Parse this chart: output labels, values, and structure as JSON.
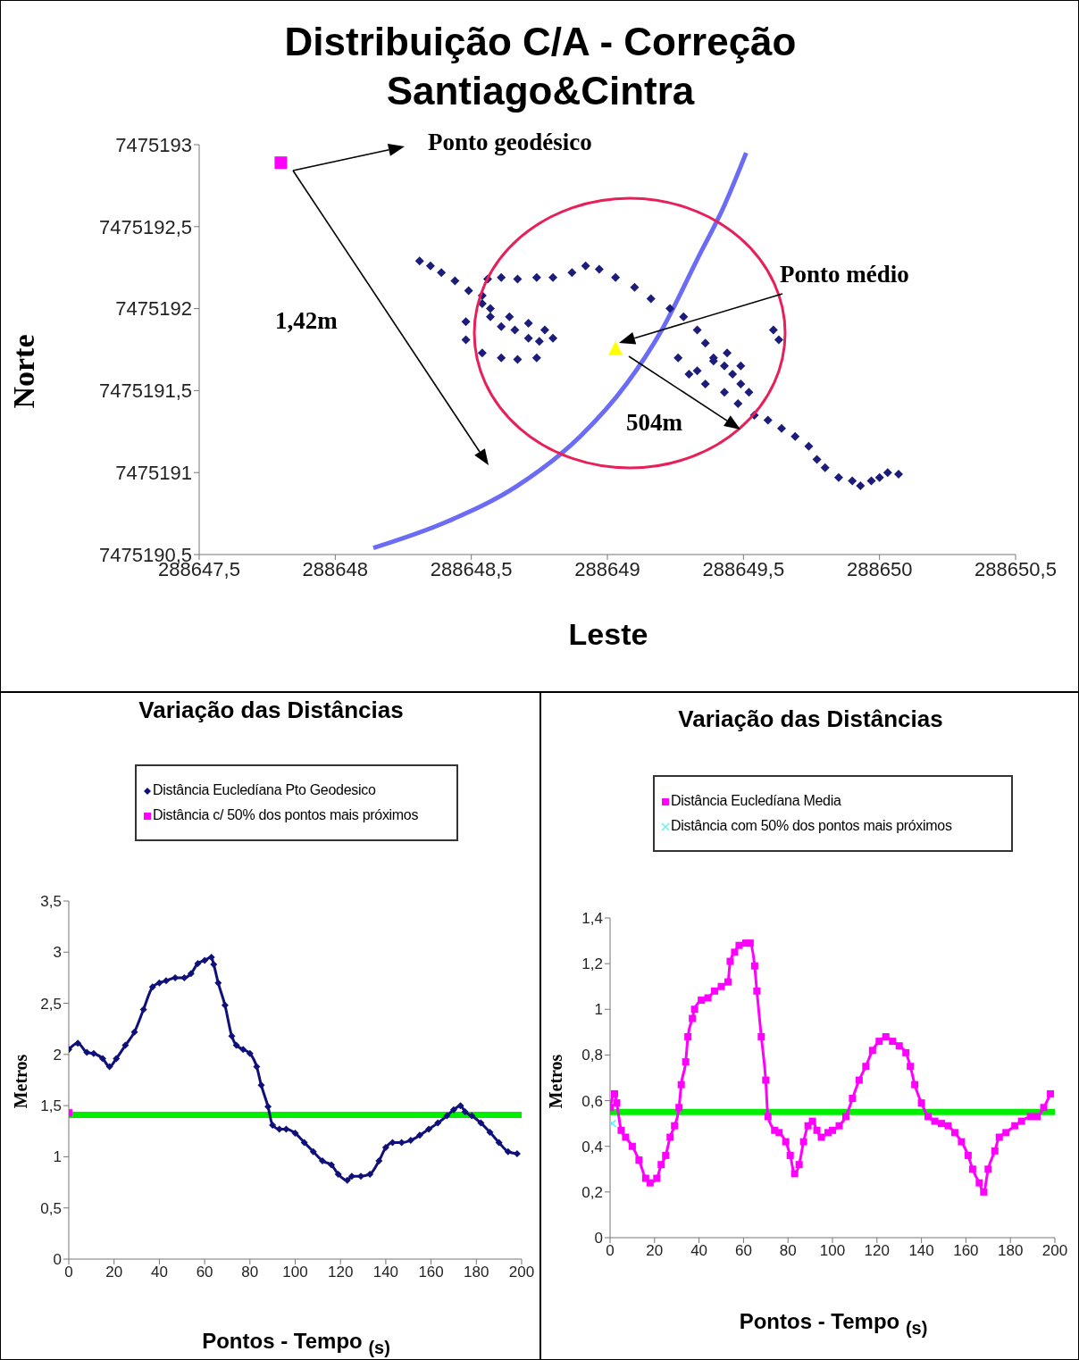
{
  "chart_data": [
    {
      "type": "scatter",
      "title": "Distribuição  C/A - Correção Santiago&Cintra",
      "xlabel": "Leste",
      "ylabel": "Norte",
      "xlim": [
        288647.5,
        288650.5
      ],
      "xticks": [
        {
          "value": 288647.5,
          "label": "288647,5"
        },
        288648,
        {
          "value": 288648.5,
          "label": "288648,5"
        },
        288649,
        {
          "value": 288649.5,
          "label": "288649,5"
        },
        288650,
        {
          "value": 288650.5,
          "label": "288650,5"
        }
      ],
      "ylim": [
        7475190.5,
        7475193
      ],
      "yticks": [
        {
          "value": 7475190.5,
          "label": "7475190,5"
        },
        7475191,
        {
          "value": 7475191.5,
          "label": "7475191,5"
        },
        7475192,
        {
          "value": 7475192.5,
          "label": "7475192,5"
        },
        7475193
      ],
      "annotations": [
        "Ponto geodésico",
        "Ponto médio",
        "1,42m",
        "504m"
      ],
      "series": [
        {
          "type": "line",
          "color": "#6b6bf5",
          "marker": "none",
          "x": [
            288648.14,
            288648.41,
            288648.67,
            288648.9,
            288649.07,
            288649.2,
            288649.33,
            288649.43,
            288649.51
          ],
          "values": [
            7475190.54,
            7475190.7,
            7475190.92,
            7475191.22,
            7475191.54,
            7475191.87,
            7475192.3,
            7475192.63,
            7475192.95
          ]
        },
        {
          "color": "#1c1c7a",
          "marker": "diamond",
          "x": [
            288648.31,
            288648.35,
            288648.39,
            288648.44,
            288648.49,
            288648.54,
            288648.57,
            288648.61,
            288648.66,
            288648.71,
            288648.75,
            288648.8,
            288648.77,
            288648.71,
            288648.64,
            288648.57,
            288648.54,
            288648.56,
            288648.61,
            288648.67,
            288648.74,
            288648.8,
            288648.87,
            288648.92,
            288648.97,
            288649.03,
            288649.1,
            288649.16,
            288649.23,
            288649.28,
            288649.33,
            288649.36,
            288649.39,
            288649.43,
            288649.46,
            288649.49,
            288649.52,
            288649.49,
            288649.44,
            288649.39,
            288649.33,
            288649.26,
            288649.3,
            288649.36,
            288649.43,
            288649.48,
            288649.54,
            288649.59,
            288649.64,
            288649.69,
            288649.74,
            288649.77,
            288649.8,
            288649.85,
            288649.9,
            288649.93,
            288649.97,
            288650.0,
            288650.03,
            288650.07,
            288649.61,
            288649.63,
            288648.48,
            288648.54,
            288648.61,
            288648.67,
            288648.74,
            288648.48
          ],
          "values": [
            7475192.29,
            7475192.26,
            7475192.22,
            7475192.17,
            7475192.11,
            7475192.03,
            7475191.95,
            7475191.89,
            7475191.87,
            7475191.82,
            7475191.8,
            7475191.82,
            7475191.87,
            7475191.91,
            7475191.95,
            7475192.0,
            7475192.08,
            7475192.18,
            7475192.19,
            7475192.18,
            7475192.19,
            7475192.19,
            7475192.22,
            7475192.26,
            7475192.24,
            7475192.19,
            7475192.13,
            7475192.06,
            7475192.0,
            7475191.95,
            7475191.87,
            7475191.79,
            7475191.7,
            7475191.65,
            7475191.6,
            7475191.54,
            7475191.49,
            7475191.65,
            7475191.73,
            7475191.68,
            7475191.62,
            7475191.7,
            7475191.6,
            7475191.54,
            7475191.49,
            7475191.42,
            7475191.35,
            7475191.32,
            7475191.27,
            7475191.22,
            7475191.16,
            7475191.08,
            7475191.03,
            7475190.97,
            7475190.95,
            7475190.92,
            7475190.95,
            7475190.97,
            7475191.0,
            7475190.99,
            7475191.87,
            7475191.81,
            7475191.81,
            7475191.73,
            7475191.7,
            7475191.69,
            7475191.7,
            7475191.92
          ]
        },
        {
          "color": "#ff00ff",
          "marker": "square",
          "x": [
            288647.8
          ],
          "values": [
            7475192.89
          ]
        },
        {
          "color": "#ffff00",
          "marker": "triangle",
          "x": [
            288649.03
          ],
          "values": [
            7475191.76
          ]
        }
      ]
    },
    {
      "type": "line",
      "title": "Variação das Distâncias",
      "xlabel": "Pontos - Tempo $_{(s)}$",
      "ylabel": "Metros",
      "legend": "top",
      "xlim": [
        0,
        200
      ],
      "xticks": [
        0,
        20,
        40,
        60,
        80,
        100,
        120,
        140,
        160,
        180,
        200
      ],
      "ylim": [
        0,
        3.5
      ],
      "yticks": [
        0,
        {
          "value": 0.5,
          "label": "0,5"
        },
        1,
        {
          "value": 1.5,
          "label": "1,5"
        },
        2,
        {
          "value": 2.5,
          "label": "2,5"
        },
        3,
        {
          "value": 3.5,
          "label": "3,5"
        }
      ],
      "ref_lines": [
        {
          "axis": "y",
          "value": 1.41,
          "color": "#00ee00"
        }
      ],
      "series": [
        {
          "name": "Distância Eucledíana Pto Geodesico",
          "color": "#10107a",
          "marker": "diamond",
          "x": [
            0,
            4,
            8,
            11,
            15,
            18,
            21,
            25,
            29,
            33,
            37,
            40,
            43,
            47,
            51,
            54,
            57,
            60,
            63,
            64,
            66,
            69,
            72,
            74,
            77,
            80,
            83,
            85,
            88,
            90,
            93,
            96,
            100,
            104,
            108,
            112,
            116,
            119,
            123,
            125,
            129,
            133,
            137,
            140,
            143,
            147,
            151,
            155,
            159,
            163,
            167,
            170,
            173,
            175,
            178,
            182,
            186,
            190,
            194,
            198
          ],
          "values": [
            2.05,
            2.11,
            2.02,
            2.01,
            1.96,
            1.88,
            1.96,
            2.09,
            2.22,
            2.44,
            2.66,
            2.7,
            2.72,
            2.75,
            2.75,
            2.79,
            2.89,
            2.92,
            2.95,
            2.88,
            2.7,
            2.48,
            2.18,
            2.09,
            2.05,
            2.01,
            1.88,
            1.7,
            1.49,
            1.31,
            1.27,
            1.27,
            1.23,
            1.14,
            1.05,
            0.96,
            0.92,
            0.83,
            0.77,
            0.81,
            0.81,
            0.83,
            0.96,
            1.09,
            1.14,
            1.14,
            1.16,
            1.21,
            1.27,
            1.33,
            1.4,
            1.46,
            1.5,
            1.44,
            1.4,
            1.33,
            1.24,
            1.14,
            1.05,
            1.03
          ]
        },
        {
          "name": "Distância c/ 50% dos pontos mais próximos",
          "type": "scatter",
          "color": "#ff00ff",
          "marker": "square",
          "x": [
            0
          ],
          "values": [
            1.43
          ]
        }
      ]
    },
    {
      "type": "line",
      "title": "Variação das Distâncias",
      "xlabel": "Pontos - Tempo $_{(s)}$",
      "ylabel": "Metros",
      "legend": "top",
      "xlim": [
        0,
        200
      ],
      "xticks": [
        0,
        20,
        40,
        60,
        80,
        100,
        120,
        140,
        160,
        180,
        200
      ],
      "ylim": [
        0,
        1.4
      ],
      "yticks": [
        0,
        {
          "value": 0.2,
          "label": "0,2"
        },
        {
          "value": 0.4,
          "label": "0,4"
        },
        {
          "value": 0.6,
          "label": "0,6"
        },
        {
          "value": 0.8,
          "label": "0,8"
        },
        1,
        {
          "value": 1.2,
          "label": "1,2"
        },
        {
          "value": 1.4,
          "label": "1,4"
        }
      ],
      "ref_lines": [
        {
          "axis": "y",
          "value": 0.55,
          "color": "#00ee00"
        }
      ],
      "series": [
        {
          "name": "Distância Eucledíana Media",
          "color": "#ff00ff",
          "marker": "square",
          "x": [
            0,
            2,
            3,
            5,
            7,
            10,
            13,
            16,
            18,
            21,
            23,
            25,
            27,
            29,
            31,
            32,
            34,
            35,
            37,
            38,
            41,
            44,
            47,
            50,
            53,
            54,
            56,
            58,
            61,
            63,
            65,
            66,
            68,
            70,
            71,
            74,
            76,
            79,
            81,
            83,
            85,
            87,
            89,
            91,
            93,
            95,
            98,
            100,
            103,
            106,
            109,
            112,
            115,
            118,
            121,
            124,
            127,
            130,
            133,
            135,
            137,
            140,
            143,
            146,
            149,
            152,
            155,
            158,
            161,
            163,
            166,
            168,
            170,
            173,
            175,
            178,
            182,
            185,
            189,
            192,
            195,
            198
          ],
          "values": [
            0.57,
            0.63,
            0.59,
            0.47,
            0.44,
            0.4,
            0.34,
            0.26,
            0.24,
            0.26,
            0.32,
            0.36,
            0.44,
            0.49,
            0.57,
            0.67,
            0.77,
            0.88,
            0.96,
            1.0,
            1.04,
            1.05,
            1.08,
            1.1,
            1.12,
            1.21,
            1.25,
            1.28,
            1.29,
            1.29,
            1.19,
            1.08,
            0.88,
            0.69,
            0.53,
            0.47,
            0.46,
            0.42,
            0.36,
            0.28,
            0.32,
            0.42,
            0.49,
            0.51,
            0.47,
            0.44,
            0.46,
            0.47,
            0.49,
            0.53,
            0.61,
            0.69,
            0.75,
            0.82,
            0.86,
            0.88,
            0.86,
            0.84,
            0.81,
            0.75,
            0.67,
            0.59,
            0.53,
            0.51,
            0.5,
            0.49,
            0.46,
            0.42,
            0.36,
            0.3,
            0.24,
            0.2,
            0.3,
            0.38,
            0.44,
            0.46,
            0.49,
            0.51,
            0.53,
            0.53,
            0.57,
            0.63
          ]
        },
        {
          "name": "Distância com 50% dos pontos mais próximos",
          "type": "scatter",
          "color": "#66f0f0",
          "marker": "cross",
          "x": [
            1
          ],
          "values": [
            0.5
          ]
        }
      ]
    }
  ]
}
